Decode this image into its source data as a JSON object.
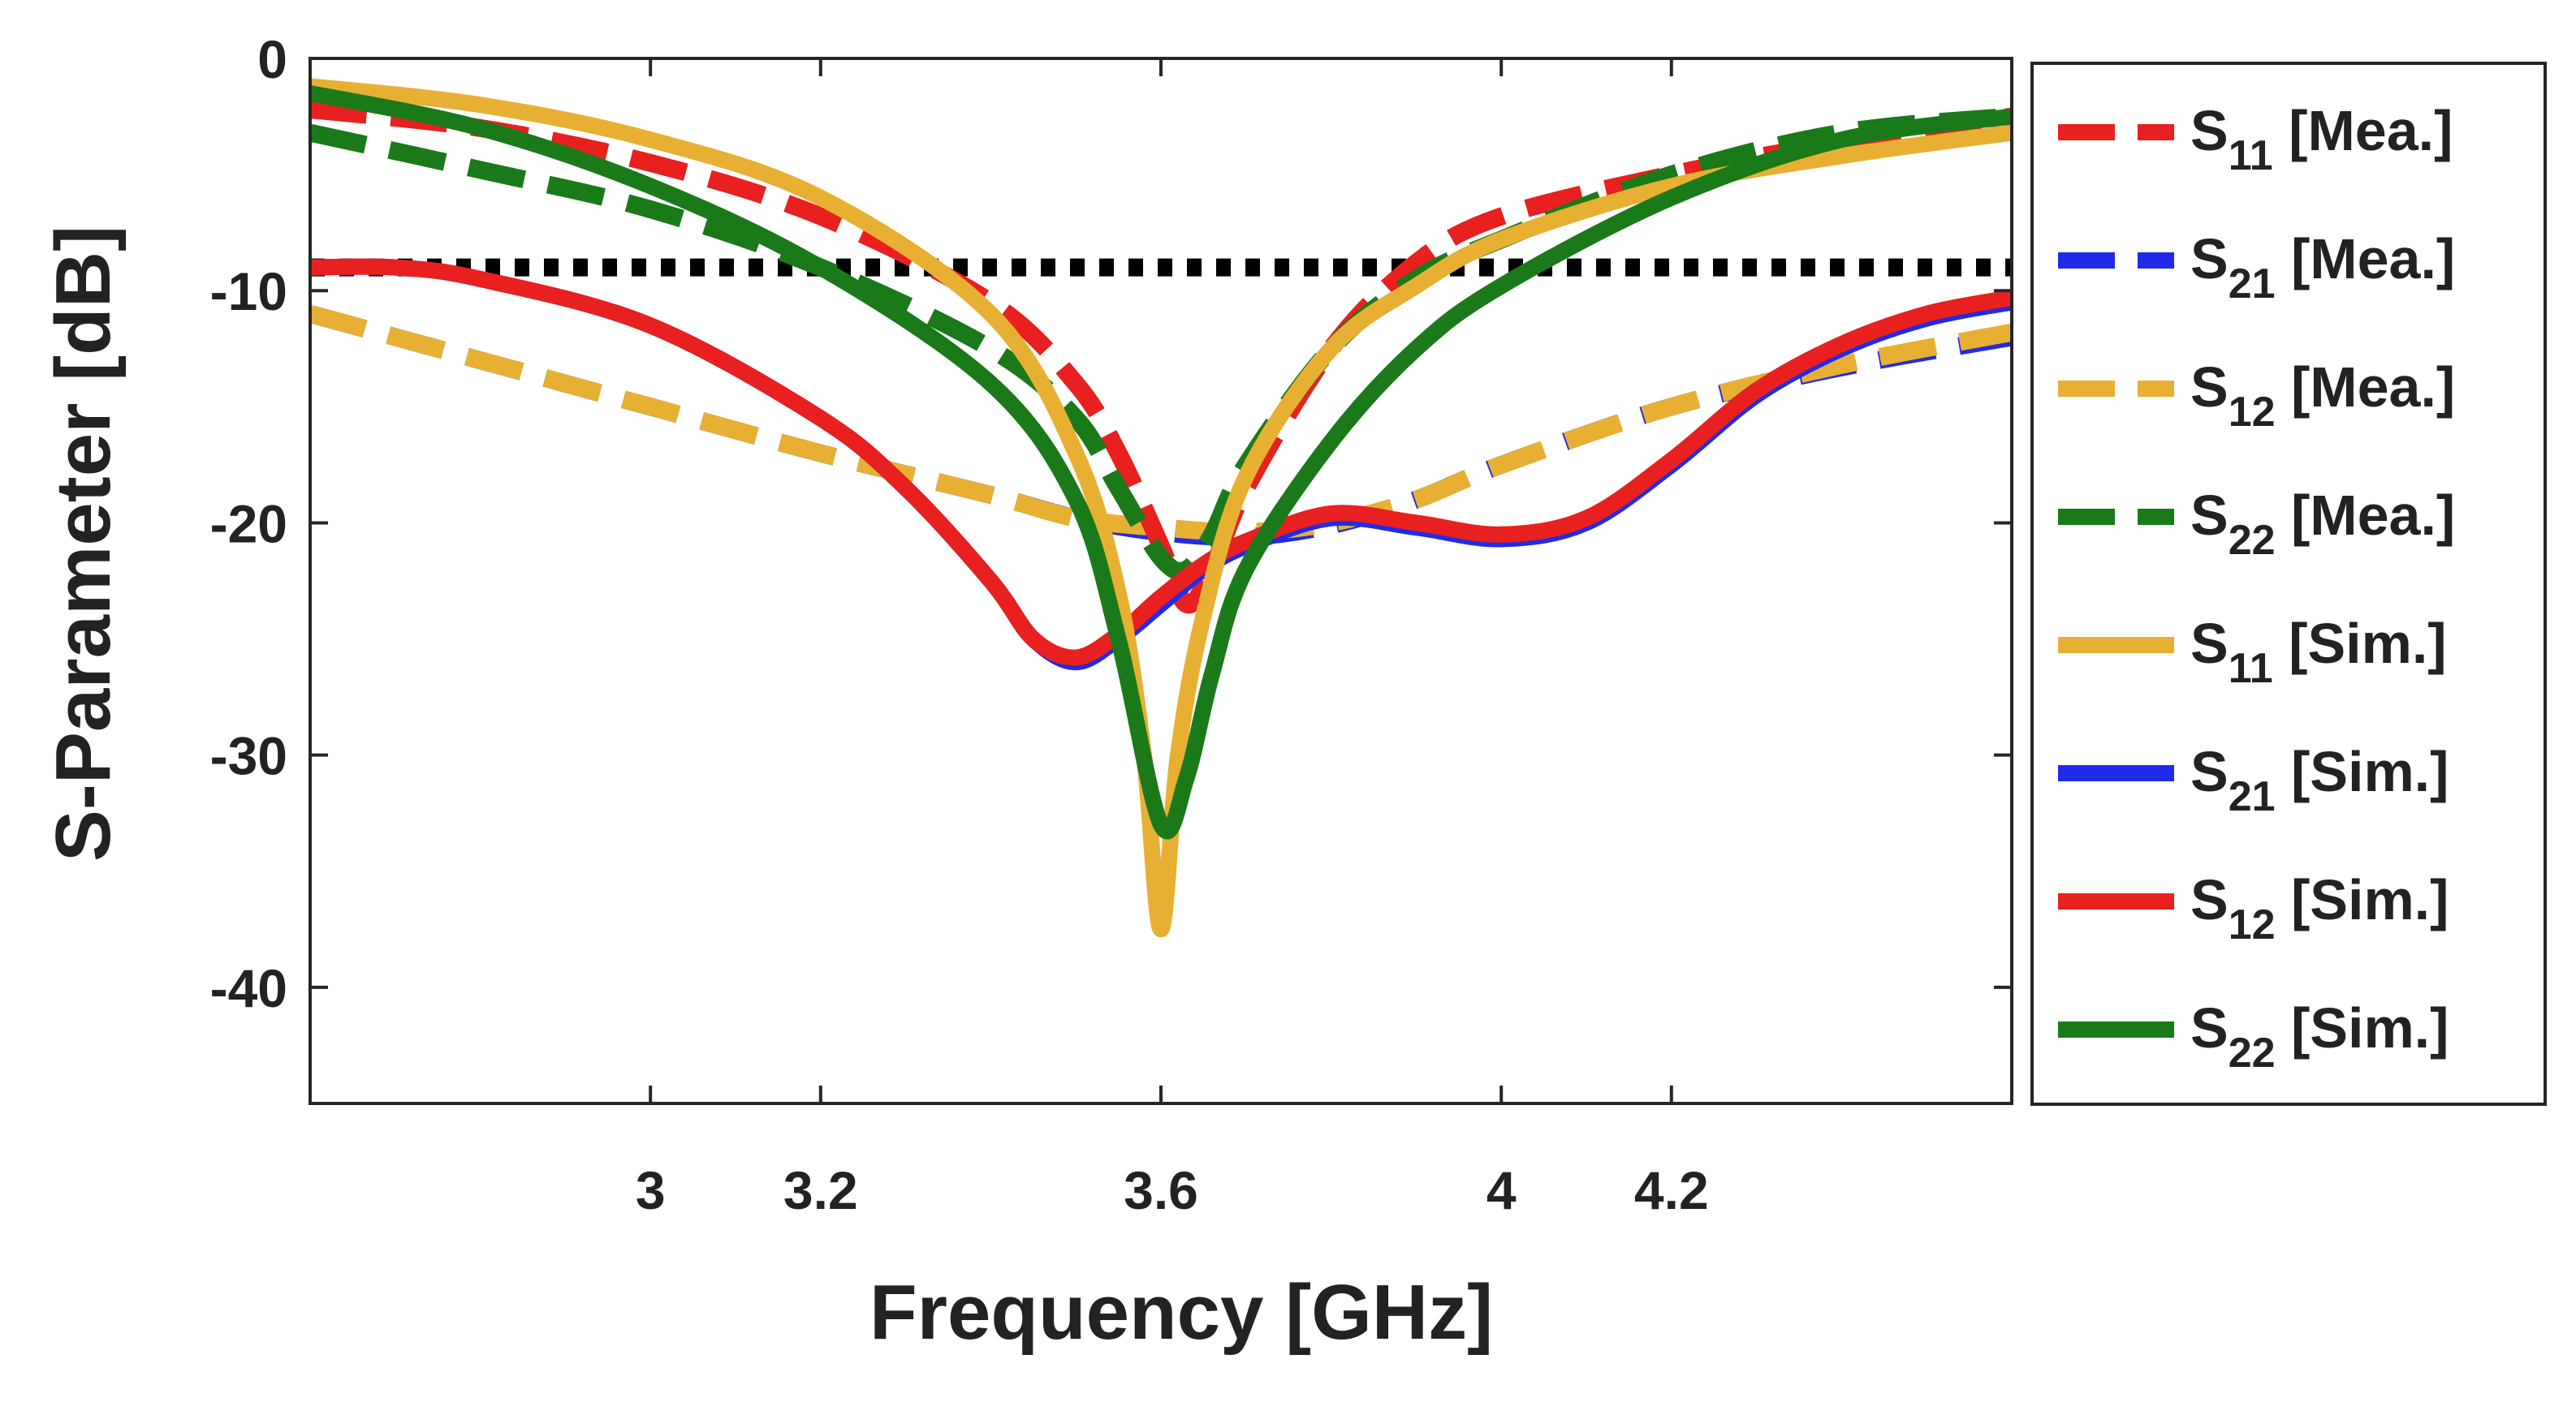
{
  "chart_data": {
    "type": "line",
    "title": "",
    "xlabel": "Frequency [GHz]",
    "ylabel": "S-Parameter [dB]",
    "xlim": [
      2.6,
      4.6
    ],
    "ylim": [
      -45,
      0
    ],
    "xticks": [
      3,
      3.2,
      3.6,
      4,
      4.2
    ],
    "xtick_labels": [
      "3",
      "3.2",
      "3.6",
      "4",
      "4.2"
    ],
    "yticks": [
      0,
      -10,
      -20,
      -30,
      -40
    ],
    "ytick_labels": [
      "0",
      "-10",
      "-20",
      "-30",
      "-40"
    ],
    "grid": false,
    "legend_position": "outside-right",
    "reference_line": {
      "y": -9,
      "style": "dotted",
      "color": "#000000"
    },
    "series": [
      {
        "name": "S11 [Mea.]",
        "label_main": "S",
        "label_sub": "11",
        "label_tag": "[Mea.]",
        "color": "#e8201f",
        "dash": "dashed",
        "x": [
          2.6,
          2.8,
          3.0,
          3.2,
          3.4,
          3.5,
          3.55,
          3.6,
          3.63,
          3.66,
          3.7,
          3.8,
          3.9,
          4.0,
          4.2,
          4.4,
          4.6
        ],
        "y": [
          -2.2,
          -3.0,
          -4.5,
          -6.8,
          -10.5,
          -14,
          -17,
          -21,
          -23.5,
          -22,
          -18.5,
          -12.5,
          -8.8,
          -6.8,
          -5.0,
          -3.6,
          -2.5
        ]
      },
      {
        "name": "S21 [Mea.]",
        "label_main": "S",
        "label_sub": "21",
        "label_tag": "[Mea.]",
        "color": "#1f2be8",
        "dash": "dashed",
        "x": [
          2.6,
          2.8,
          3.0,
          3.2,
          3.4,
          3.5,
          3.6,
          3.7,
          3.8,
          3.9,
          4.0,
          4.2,
          4.4,
          4.6
        ],
        "y": [
          -11,
          -13,
          -15,
          -17,
          -18.8,
          -19.8,
          -20.4,
          -20.6,
          -20.1,
          -19,
          -17.5,
          -15,
          -13.3,
          -12
        ]
      },
      {
        "name": "S12 [Mea.]",
        "label_main": "S",
        "label_sub": "12",
        "label_tag": "[Mea.]",
        "color": "#e8b033",
        "dash": "dashed",
        "x": [
          2.6,
          2.8,
          3.0,
          3.2,
          3.4,
          3.5,
          3.6,
          3.7,
          3.8,
          3.9,
          4.0,
          4.2,
          4.4,
          4.6
        ],
        "y": [
          -11,
          -13,
          -15,
          -17,
          -18.8,
          -19.8,
          -20.2,
          -20.4,
          -20,
          -19,
          -17.5,
          -15,
          -13.2,
          -11.8
        ]
      },
      {
        "name": "S22 [Mea.]",
        "label_main": "S",
        "label_sub": "22",
        "label_tag": "[Mea.]",
        "color": "#1a7a1a",
        "dash": "dashed",
        "x": [
          2.6,
          2.8,
          3.0,
          3.2,
          3.4,
          3.5,
          3.55,
          3.6,
          3.63,
          3.66,
          3.7,
          3.8,
          3.9,
          4.0,
          4.2,
          4.4,
          4.6
        ],
        "y": [
          -3.2,
          -4.8,
          -6.5,
          -9.0,
          -12.5,
          -15.5,
          -18.5,
          -21.5,
          -22,
          -20.5,
          -17.5,
          -12.5,
          -9.5,
          -7.8,
          -5.0,
          -3.2,
          -2.5
        ]
      },
      {
        "name": "S11 [Sim.]",
        "label_main": "S",
        "label_sub": "11",
        "label_tag": "[Sim.]",
        "color": "#e8b033",
        "dash": "solid",
        "x": [
          2.6,
          2.8,
          3.0,
          3.2,
          3.4,
          3.5,
          3.55,
          3.58,
          3.6,
          3.62,
          3.65,
          3.7,
          3.8,
          3.9,
          4.0,
          4.2,
          4.4,
          4.6
        ],
        "y": [
          -1.2,
          -2.0,
          -3.5,
          -6.0,
          -11.0,
          -17.0,
          -23.0,
          -30.0,
          -37.5,
          -30.0,
          -24.0,
          -18.0,
          -12.5,
          -9.8,
          -7.8,
          -5.5,
          -4.2,
          -3.2
        ]
      },
      {
        "name": "S21 [Sim.]",
        "label_main": "S",
        "label_sub": "21",
        "label_tag": "[Sim.]",
        "color": "#1f2be8",
        "dash": "solid",
        "x": [
          2.6,
          2.7,
          2.8,
          3.0,
          3.2,
          3.3,
          3.4,
          3.45,
          3.5,
          3.55,
          3.6,
          3.65,
          3.7,
          3.8,
          3.9,
          4.0,
          4.1,
          4.2,
          4.3,
          4.4,
          4.5,
          4.6
        ],
        "y": [
          -9.0,
          -9.0,
          -9.5,
          -11.5,
          -15.5,
          -18.5,
          -22.5,
          -25,
          -26.0,
          -25.0,
          -23.5,
          -22.0,
          -21.0,
          -19.8,
          -20.2,
          -20.7,
          -20.0,
          -17.5,
          -14.5,
          -12.5,
          -11.2,
          -10.5
        ]
      },
      {
        "name": "S12 [Sim.]",
        "label_main": "S",
        "label_sub": "12",
        "label_tag": "[Sim.]",
        "color": "#e8201f",
        "dash": "solid",
        "x": [
          2.6,
          2.7,
          2.8,
          3.0,
          3.2,
          3.3,
          3.4,
          3.45,
          3.5,
          3.55,
          3.6,
          3.65,
          3.7,
          3.8,
          3.9,
          4.0,
          4.1,
          4.2,
          4.3,
          4.4,
          4.5,
          4.6
        ],
        "y": [
          -9.0,
          -9.0,
          -9.5,
          -11.5,
          -15.5,
          -18.5,
          -22.5,
          -25,
          -25.8,
          -24.8,
          -23.2,
          -21.8,
          -20.8,
          -19.6,
          -20.0,
          -20.5,
          -19.8,
          -17.3,
          -14.3,
          -12.3,
          -11.0,
          -10.3
        ]
      },
      {
        "name": "S22 [Sim.]",
        "label_main": "S",
        "label_sub": "22",
        "label_tag": "[Sim.]",
        "color": "#1a7a1a",
        "dash": "solid",
        "x": [
          2.6,
          2.8,
          3.0,
          3.2,
          3.4,
          3.5,
          3.55,
          3.6,
          3.63,
          3.66,
          3.7,
          3.8,
          3.9,
          4.0,
          4.2,
          4.4,
          4.6
        ],
        "y": [
          -1.5,
          -3.0,
          -5.5,
          -9.0,
          -14.0,
          -19.0,
          -25.0,
          -33.0,
          -31.0,
          -26.5,
          -22.0,
          -16.5,
          -12.5,
          -9.8,
          -6.0,
          -3.5,
          -2.5
        ]
      }
    ]
  }
}
